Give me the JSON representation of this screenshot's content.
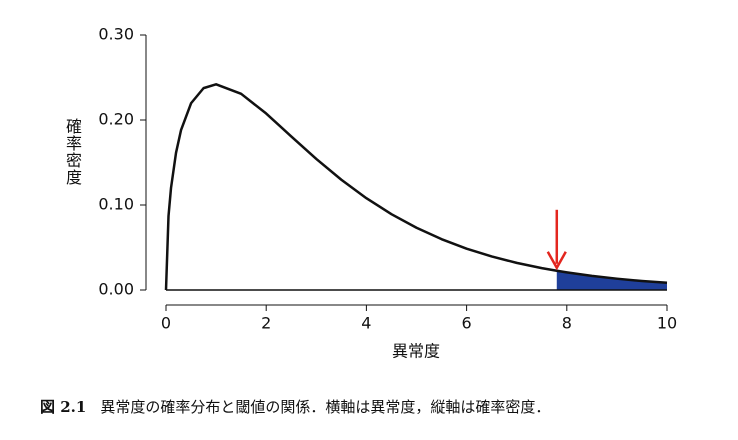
{
  "chart_data": {
    "type": "area-line",
    "x_label": "異常度",
    "y_label": "確率密度",
    "x": [
      0,
      0.05,
      0.1,
      0.2,
      0.3,
      0.5,
      0.75,
      1,
      1.5,
      2,
      2.5,
      3,
      3.5,
      4,
      4.5,
      5,
      5.5,
      6,
      6.5,
      7,
      7.5,
      7.8,
      8,
      8.5,
      9,
      9.5,
      10
    ],
    "values": [
      0,
      0.087,
      0.12,
      0.1614,
      0.1881,
      0.2197,
      0.2375,
      0.242,
      0.2308,
      0.2076,
      0.1807,
      0.1542,
      0.1297,
      0.108,
      0.0892,
      0.0732,
      0.0598,
      0.0486,
      0.0395,
      0.0319,
      0.0257,
      0.0226,
      0.0207,
      0.0166,
      0.0133,
      0.0106,
      0.0085
    ],
    "threshold": 7.8,
    "line_color": "#111111",
    "fill_color": "#1f3f9a",
    "arrow_color": "#e3261e",
    "xlim": [
      0,
      10
    ],
    "xticks": [
      0,
      2,
      4,
      6,
      8,
      10
    ],
    "ylim": [
      0,
      0.3
    ],
    "yticks": [
      {
        "value": 0,
        "label": "0.00"
      },
      {
        "value": 0.1,
        "label": "0.10"
      },
      {
        "value": 0.2,
        "label": "0.20"
      },
      {
        "value": 0.3,
        "label": "0.30"
      }
    ]
  },
  "caption": {
    "figure": "図 2.1",
    "text": "異常度の確率分布と閾値の関係．横軸は異常度，縦軸は確率密度．"
  }
}
